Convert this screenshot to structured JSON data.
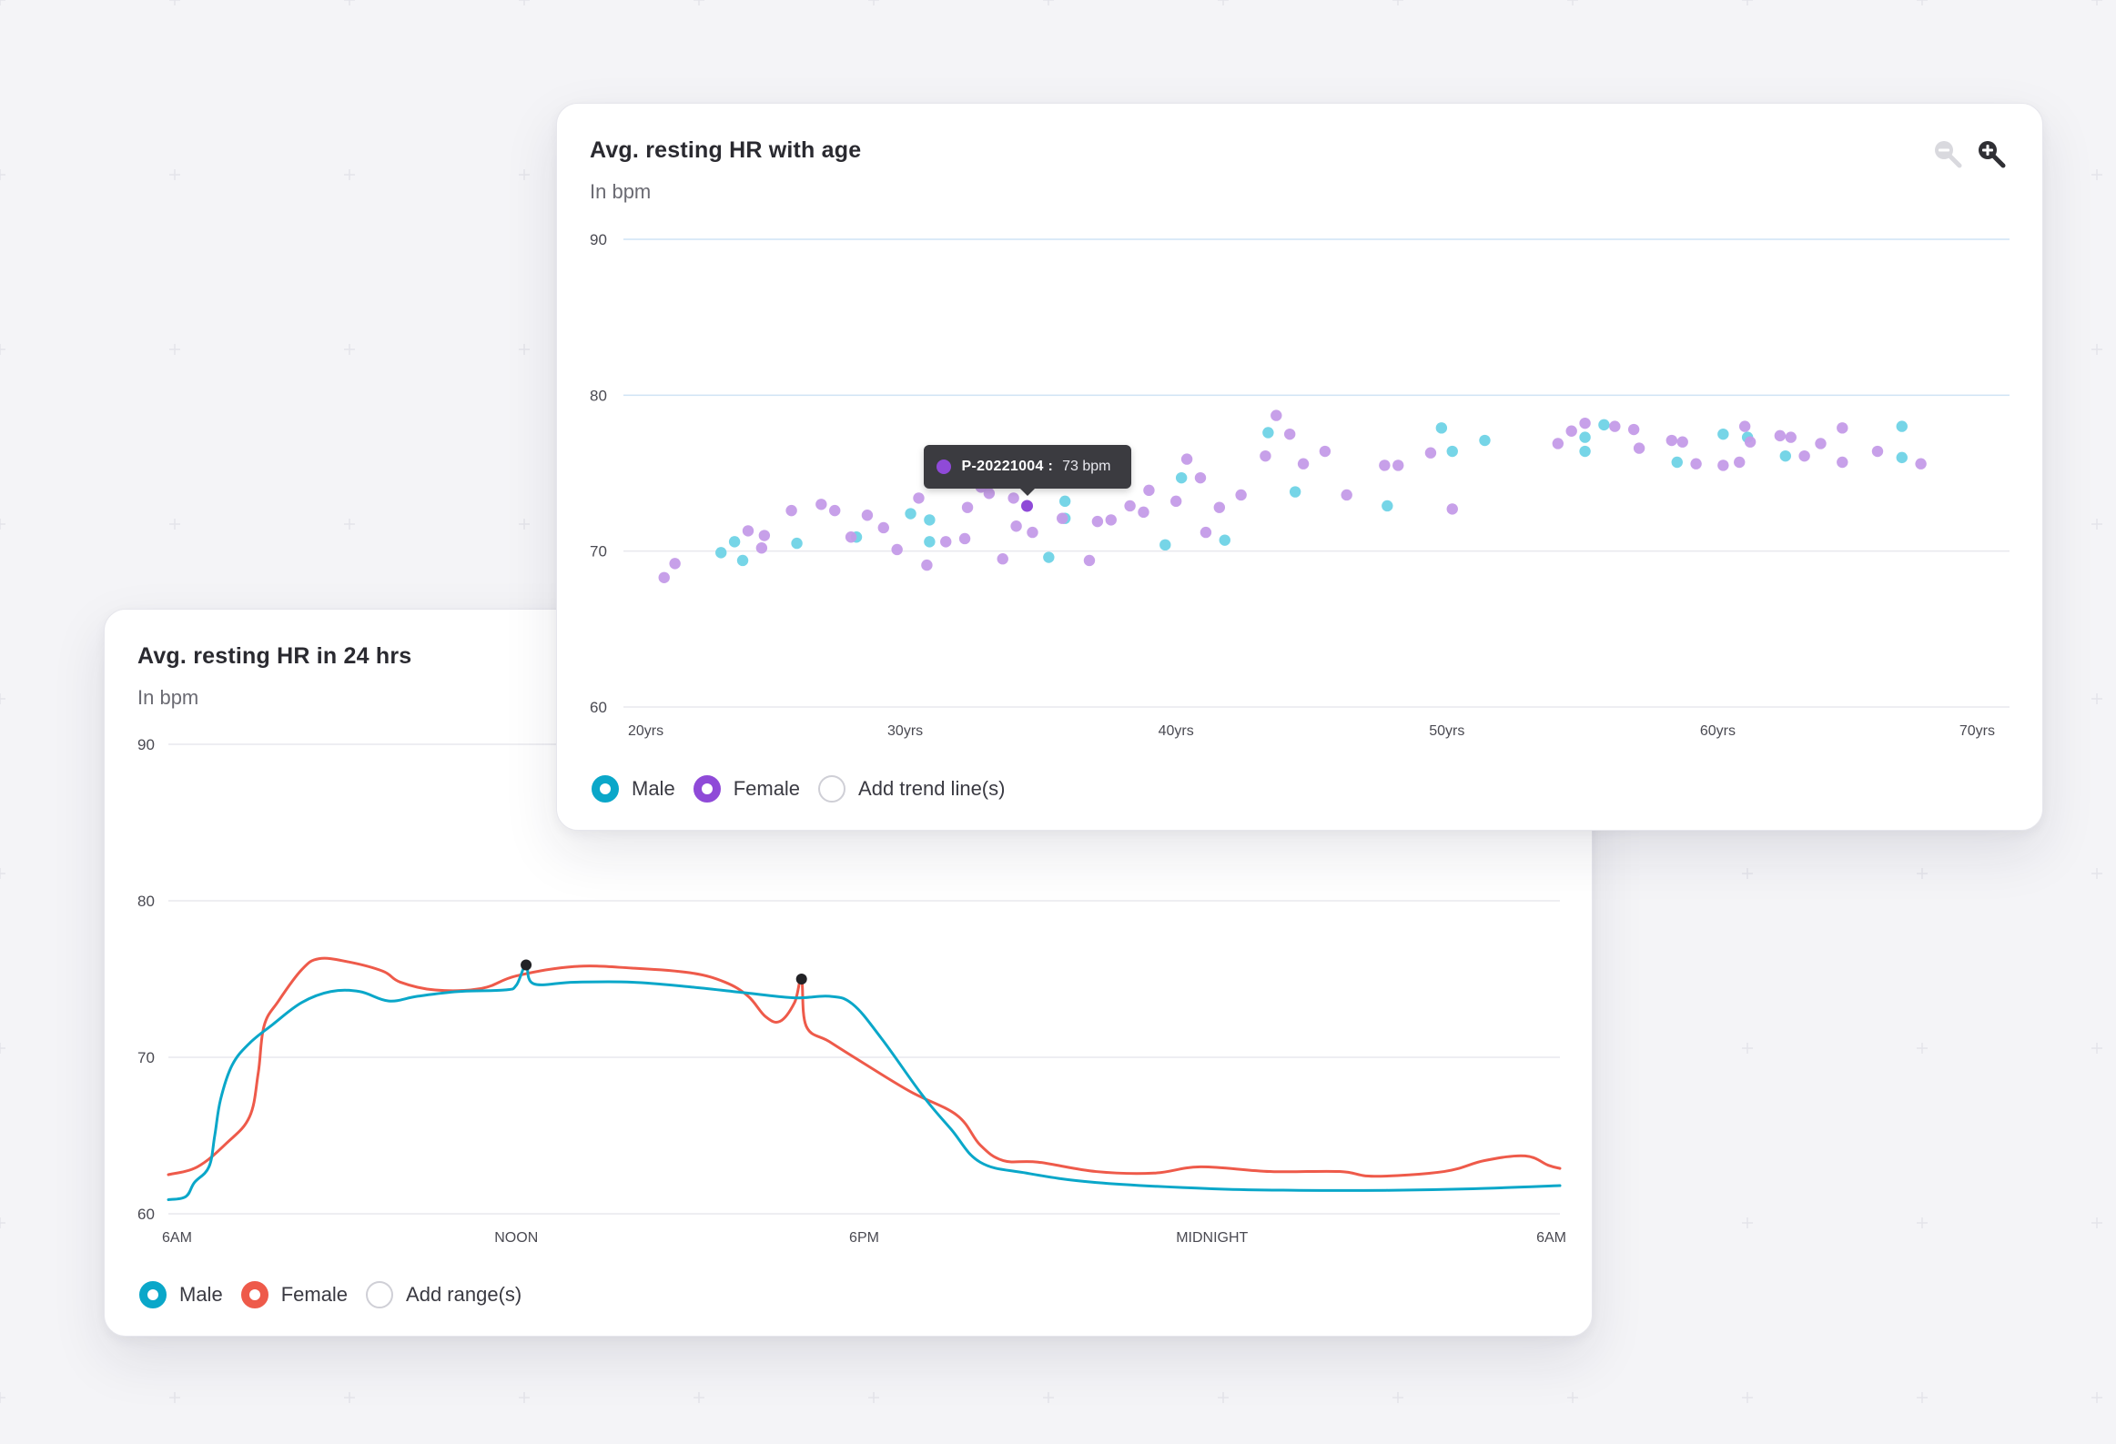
{
  "colors": {
    "male": "#0aa7c9",
    "male_point": "#6fd3e6",
    "female_age": "#8f4ad8",
    "female_age_point": "#c49be8",
    "female_day": "#ee5a4a",
    "grid": "#e9e9ee",
    "grid_blue": "#cfe3f5",
    "marker": "#222226"
  },
  "age_card": {
    "title": "Avg. resting HR with age",
    "subtitle": "In bpm",
    "zoom_out_icon": "zoom-out-icon",
    "zoom_in_icon": "zoom-in-icon",
    "legend": {
      "male": "Male",
      "female": "Female",
      "trend": "Add trend line(s)"
    },
    "tooltip": {
      "id": "P-20221004 :",
      "value": "73 bpm",
      "age": 34.5,
      "hr": 72.9
    }
  },
  "day_card": {
    "title": "Avg. resting HR in 24 hrs",
    "subtitle": "In bpm",
    "legend": {
      "male": "Male",
      "female": "Female",
      "range": "Add range(s)"
    }
  },
  "chart_data": [
    {
      "type": "scatter",
      "title": "Avg. resting HR with age",
      "subtitle": "In bpm",
      "xlim": [
        20,
        70
      ],
      "ylim": [
        60,
        90
      ],
      "x_ticks": [
        {
          "value": 20,
          "label": "20yrs"
        },
        {
          "value": 30,
          "label": "30yrs"
        },
        {
          "value": 40,
          "label": "40yrs"
        },
        {
          "value": 50,
          "label": "50yrs"
        },
        {
          "value": 60,
          "label": "60yrs"
        },
        {
          "value": 70,
          "label": "70yrs"
        }
      ],
      "y_ticks": [
        60,
        70,
        80,
        90
      ],
      "grid": true,
      "legend_position": "bottom-left",
      "series": [
        {
          "name": "Male",
          "points": [
            [
              23.2,
              69.9
            ],
            [
              23.7,
              70.6
            ],
            [
              24.0,
              69.4
            ],
            [
              26.0,
              70.5
            ],
            [
              28.2,
              70.9
            ],
            [
              30.2,
              72.4
            ],
            [
              30.9,
              72.0
            ],
            [
              30.9,
              70.6
            ],
            [
              35.3,
              69.6
            ],
            [
              35.9,
              73.2
            ],
            [
              35.9,
              72.1
            ],
            [
              39.6,
              70.4
            ],
            [
              40.2,
              74.7
            ],
            [
              41.8,
              70.7
            ],
            [
              43.4,
              77.6
            ],
            [
              44.4,
              73.8
            ],
            [
              47.8,
              72.9
            ],
            [
              49.8,
              77.9
            ],
            [
              50.2,
              76.4
            ],
            [
              51.4,
              77.1
            ],
            [
              55.1,
              77.3
            ],
            [
              55.1,
              76.4
            ],
            [
              55.8,
              78.1
            ],
            [
              58.5,
              75.7
            ],
            [
              60.2,
              77.5
            ],
            [
              61.1,
              77.3
            ],
            [
              62.5,
              76.1
            ],
            [
              66.8,
              78.0
            ],
            [
              66.8,
              76.0
            ]
          ]
        },
        {
          "name": "Female",
          "points": [
            [
              21.1,
              68.3
            ],
            [
              21.5,
              69.2
            ],
            [
              24.2,
              71.3
            ],
            [
              24.7,
              70.2
            ],
            [
              24.8,
              71.0
            ],
            [
              25.8,
              72.6
            ],
            [
              26.9,
              73.0
            ],
            [
              27.4,
              72.6
            ],
            [
              28.0,
              70.9
            ],
            [
              28.6,
              72.3
            ],
            [
              29.2,
              71.5
            ],
            [
              29.7,
              70.1
            ],
            [
              30.8,
              69.1
            ],
            [
              30.5,
              73.4
            ],
            [
              31.5,
              70.6
            ],
            [
              32.3,
              72.8
            ],
            [
              32.8,
              74.1
            ],
            [
              33.6,
              69.5
            ],
            [
              34.0,
              73.4
            ],
            [
              34.1,
              71.6
            ],
            [
              34.7,
              71.2
            ],
            [
              35.8,
              72.1
            ],
            [
              36.8,
              69.4
            ],
            [
              37.6,
              72.0
            ],
            [
              38.3,
              72.9
            ],
            [
              38.8,
              72.5
            ],
            [
              39.0,
              73.9
            ],
            [
              40.0,
              73.2
            ],
            [
              40.4,
              75.9
            ],
            [
              40.9,
              74.7
            ],
            [
              41.1,
              71.2
            ],
            [
              41.6,
              72.8
            ],
            [
              42.4,
              73.6
            ],
            [
              43.3,
              76.1
            ],
            [
              43.7,
              78.7
            ],
            [
              44.2,
              77.5
            ],
            [
              44.7,
              75.6
            ],
            [
              45.5,
              76.4
            ],
            [
              46.3,
              73.6
            ],
            [
              47.7,
              75.5
            ],
            [
              48.2,
              75.5
            ],
            [
              49.4,
              76.3
            ],
            [
              50.2,
              72.7
            ],
            [
              54.1,
              76.9
            ],
            [
              54.6,
              77.7
            ],
            [
              55.1,
              78.2
            ],
            [
              56.2,
              78.0
            ],
            [
              56.9,
              77.8
            ],
            [
              57.1,
              76.6
            ],
            [
              58.3,
              77.1
            ],
            [
              58.7,
              77.0
            ],
            [
              59.2,
              75.6
            ],
            [
              60.2,
              75.5
            ],
            [
              60.8,
              75.7
            ],
            [
              61.0,
              78.0
            ],
            [
              61.2,
              77.0
            ],
            [
              62.3,
              77.4
            ],
            [
              62.7,
              77.3
            ],
            [
              63.2,
              76.1
            ],
            [
              63.8,
              76.9
            ],
            [
              64.6,
              77.9
            ],
            [
              64.6,
              75.7
            ],
            [
              65.9,
              76.4
            ],
            [
              67.5,
              75.6
            ],
            [
              33.1,
              73.7
            ],
            [
              37.1,
              71.9
            ],
            [
              32.2,
              70.8
            ]
          ]
        }
      ]
    },
    {
      "type": "line",
      "title": "Avg. resting HR in 24 hrs",
      "subtitle": "In bpm",
      "xlim": [
        6,
        30
      ],
      "ylim": [
        60,
        90
      ],
      "x_ticks": [
        {
          "value": 6,
          "label": "6AM"
        },
        {
          "value": 12,
          "label": "NOON"
        },
        {
          "value": 18,
          "label": "6PM"
        },
        {
          "value": 24,
          "label": "MIDNIGHT"
        },
        {
          "value": 30,
          "label": "6AM"
        }
      ],
      "y_ticks": [
        60,
        70,
        80,
        90
      ],
      "grid": true,
      "legend_position": "bottom-left",
      "series": [
        {
          "name": "Male",
          "points": [
            [
              6.0,
              60.9
            ],
            [
              6.3,
              61.1
            ],
            [
              6.45,
              62.0
            ],
            [
              6.7,
              63.0
            ],
            [
              6.8,
              65.0
            ],
            [
              6.9,
              67.3
            ],
            [
              7.1,
              69.5
            ],
            [
              7.4,
              70.9
            ],
            [
              7.8,
              72.1
            ],
            [
              8.3,
              73.5
            ],
            [
              8.8,
              74.2
            ],
            [
              9.3,
              74.2
            ],
            [
              9.8,
              73.6
            ],
            [
              10.3,
              73.9
            ],
            [
              11.0,
              74.2
            ],
            [
              11.8,
              74.3
            ],
            [
              12.0,
              74.6
            ],
            [
              12.17,
              75.9
            ],
            [
              12.3,
              74.7
            ],
            [
              13.0,
              74.8
            ],
            [
              14.0,
              74.8
            ],
            [
              15.0,
              74.5
            ],
            [
              16.0,
              74.1
            ],
            [
              16.8,
              73.8
            ],
            [
              17.4,
              73.9
            ],
            [
              17.8,
              73.4
            ],
            [
              18.3,
              71.2
            ],
            [
              19.0,
              67.6
            ],
            [
              19.5,
              65.4
            ],
            [
              20.0,
              63.3
            ],
            [
              20.8,
              62.6
            ],
            [
              22.0,
              62.0
            ],
            [
              24.0,
              61.6
            ],
            [
              25.5,
              61.5
            ],
            [
              27.0,
              61.5
            ],
            [
              28.5,
              61.6
            ],
            [
              30.0,
              61.8
            ]
          ]
        },
        {
          "name": "Female",
          "points": [
            [
              6.0,
              62.5
            ],
            [
              6.5,
              63.0
            ],
            [
              7.0,
              64.5
            ],
            [
              7.4,
              66.2
            ],
            [
              7.55,
              69.0
            ],
            [
              7.65,
              72.0
            ],
            [
              7.9,
              73.6
            ],
            [
              8.3,
              75.6
            ],
            [
              8.6,
              76.3
            ],
            [
              9.1,
              76.1
            ],
            [
              9.7,
              75.5
            ],
            [
              10.0,
              74.8
            ],
            [
              10.6,
              74.3
            ],
            [
              11.4,
              74.4
            ],
            [
              12.0,
              75.2
            ],
            [
              13.0,
              75.8
            ],
            [
              14.0,
              75.7
            ],
            [
              15.0,
              75.4
            ],
            [
              15.6,
              74.8
            ],
            [
              16.0,
              73.9
            ],
            [
              16.3,
              72.6
            ],
            [
              16.55,
              72.3
            ],
            [
              16.8,
              73.5
            ],
            [
              16.92,
              75.0
            ],
            [
              17.0,
              72.0
            ],
            [
              17.4,
              71.0
            ],
            [
              18.0,
              69.6
            ],
            [
              18.8,
              67.8
            ],
            [
              19.6,
              66.3
            ],
            [
              20.0,
              64.4
            ],
            [
              20.4,
              63.4
            ],
            [
              21.0,
              63.3
            ],
            [
              22.0,
              62.7
            ],
            [
              23.0,
              62.6
            ],
            [
              23.8,
              63.0
            ],
            [
              25.0,
              62.7
            ],
            [
              26.2,
              62.7
            ],
            [
              26.8,
              62.4
            ],
            [
              28.0,
              62.7
            ],
            [
              28.7,
              63.4
            ],
            [
              29.4,
              63.7
            ],
            [
              29.8,
              63.1
            ],
            [
              30.0,
              62.9
            ]
          ]
        }
      ],
      "markers": [
        [
          12.17,
          75.9
        ],
        [
          16.92,
          75.0
        ]
      ]
    }
  ]
}
